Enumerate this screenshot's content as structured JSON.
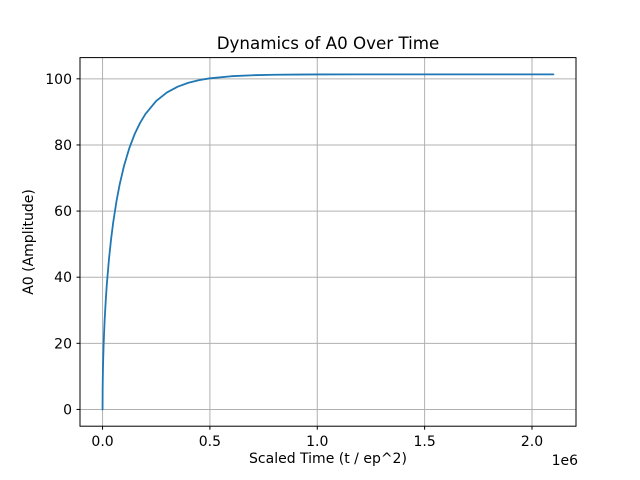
{
  "chart_data": {
    "type": "line",
    "title": "Dynamics of A0 Over Time",
    "xlabel": "Scaled Time (t / ep^2)",
    "ylabel": "A0 (Amplitude)",
    "x_offset_label": "1e6",
    "grid": true,
    "legend": false,
    "xlim": [
      -105000,
      2205000
    ],
    "ylim": [
      -5.07,
      106.42
    ],
    "x_ticks": [
      {
        "value": 0,
        "label": "0.0"
      },
      {
        "value": 500000,
        "label": "0.5"
      },
      {
        "value": 1000000,
        "label": "1.0"
      },
      {
        "value": 1500000,
        "label": "1.5"
      },
      {
        "value": 2000000,
        "label": "2.0"
      }
    ],
    "y_ticks": [
      {
        "value": 0,
        "label": "0"
      },
      {
        "value": 20,
        "label": "20"
      },
      {
        "value": 40,
        "label": "40"
      },
      {
        "value": 60,
        "label": "60"
      },
      {
        "value": 80,
        "label": "80"
      },
      {
        "value": 100,
        "label": "100"
      }
    ],
    "series": [
      {
        "name": "A0",
        "color": "#1f77b4",
        "points": [
          [
            0,
            0.0
          ],
          [
            500,
            6.21
          ],
          [
            1000,
            8.77
          ],
          [
            2000,
            12.38
          ],
          [
            3000,
            15.14
          ],
          [
            5000,
            19.47
          ],
          [
            7000,
            22.95
          ],
          [
            10000,
            27.28
          ],
          [
            15000,
            33.1
          ],
          [
            20000,
            37.87
          ],
          [
            30000,
            45.54
          ],
          [
            40000,
            51.65
          ],
          [
            50000,
            56.73
          ],
          [
            65000,
            63.01
          ],
          [
            80000,
            68.14
          ],
          [
            100000,
            73.68
          ],
          [
            125000,
            79.11
          ],
          [
            150000,
            83.35
          ],
          [
            175000,
            86.7
          ],
          [
            200000,
            89.38
          ],
          [
            250000,
            93.3
          ],
          [
            300000,
            95.89
          ],
          [
            350000,
            97.63
          ],
          [
            400000,
            98.81
          ],
          [
            450000,
            99.62
          ],
          [
            500000,
            100.16
          ],
          [
            600000,
            100.79
          ],
          [
            700000,
            101.09
          ],
          [
            800000,
            101.23
          ],
          [
            900000,
            101.29
          ],
          [
            1000000,
            101.32
          ],
          [
            1200000,
            101.34
          ],
          [
            1400000,
            101.35
          ],
          [
            1600000,
            101.35
          ],
          [
            1800000,
            101.35
          ],
          [
            2000000,
            101.35
          ],
          [
            2100000,
            101.35
          ]
        ]
      }
    ],
    "colors": {
      "line": "#1f77b4",
      "grid": "#b0b0b0",
      "spine": "#000000",
      "text": "#000000",
      "background": "#ffffff"
    }
  }
}
